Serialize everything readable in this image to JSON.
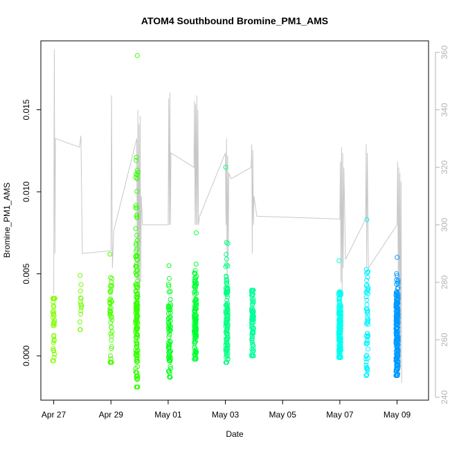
{
  "chart_data": {
    "type": "scatter",
    "title": "ATOM4 Southbound Bromine_PM1_AMS",
    "xlabel": "Date",
    "ylabel": "Bromine_PM1_AMS",
    "x_unit": "days since Apr 27",
    "xlim": [
      -0.45,
      13.1
    ],
    "ylim": [
      -0.0027,
      0.0192
    ],
    "y2lim": [
      239,
      364
    ],
    "x_ticks": [
      {
        "value": 0,
        "label": "Apr 27"
      },
      {
        "value": 2,
        "label": "Apr 29"
      },
      {
        "value": 4,
        "label": "May 01"
      },
      {
        "value": 6,
        "label": "May 03"
      },
      {
        "value": 8,
        "label": "May 05"
      },
      {
        "value": 10,
        "label": "May 07"
      },
      {
        "value": 12,
        "label": "May 09"
      }
    ],
    "y_ticks": [
      {
        "value": 0.0,
        "label": "0.000"
      },
      {
        "value": 0.005,
        "label": "0.005"
      },
      {
        "value": 0.01,
        "label": "0.010"
      },
      {
        "value": 0.015,
        "label": "0.015"
      }
    ],
    "y2_ticks": [
      {
        "value": 240,
        "label": "240"
      },
      {
        "value": 260,
        "label": "260"
      },
      {
        "value": 280,
        "label": "280"
      },
      {
        "value": 300,
        "label": "300"
      },
      {
        "value": 320,
        "label": "320"
      },
      {
        "value": 340,
        "label": "340"
      },
      {
        "value": 360,
        "label": "360"
      }
    ],
    "series": [
      {
        "name": "Bromine_PM1_AMS",
        "axis": "left",
        "color_by_time": "rainbow yellow-green to blue",
        "clusters": [
          {
            "x": 0.0,
            "min": -0.0003,
            "max": 0.0035,
            "n": 40,
            "center": 0.002,
            "color": "#80ff00"
          },
          {
            "x": 0.95,
            "min": 0.0016,
            "max": 0.0049,
            "n": 14,
            "center": 0.003,
            "color": "#73ff00"
          },
          {
            "x": 2.0,
            "min": -0.0004,
            "max": 0.0062,
            "n": 45,
            "center": 0.002,
            "color": "#4dff00"
          },
          {
            "x": 2.9,
            "min": -0.0019,
            "max": 0.0183,
            "n": 160,
            "center": 0.0025,
            "color": "#33ff00"
          },
          {
            "x": 4.05,
            "min": -0.0013,
            "max": 0.0055,
            "n": 70,
            "center": 0.0015,
            "color": "#00ff1a"
          },
          {
            "x": 4.95,
            "min": -0.0002,
            "max": 0.0075,
            "n": 130,
            "center": 0.0022,
            "color": "#00ff33"
          },
          {
            "x": 6.05,
            "min": -0.0004,
            "max": 0.0115,
            "n": 110,
            "center": 0.002,
            "color": "#00ff80"
          },
          {
            "x": 6.95,
            "min": 0.0,
            "max": 0.004,
            "n": 80,
            "center": 0.0022,
            "color": "#00ff99"
          },
          {
            "x": 10.0,
            "min": -0.0001,
            "max": 0.0058,
            "n": 160,
            "center": 0.0015,
            "color": "#00ffee"
          },
          {
            "x": 10.95,
            "min": -0.0012,
            "max": 0.0083,
            "n": 60,
            "center": 0.0018,
            "color": "#00f2ff"
          },
          {
            "x": 12.0,
            "min": -0.0012,
            "max": 0.006,
            "n": 200,
            "center": 0.0015,
            "color": "#0099ff"
          }
        ]
      },
      {
        "name": "secondary (right axis)",
        "axis": "right",
        "color": "#c8c8c8",
        "path": [
          [
            0.0,
            276
          ],
          [
            0.02,
            361
          ],
          [
            0.04,
            290
          ],
          [
            0.06,
            330
          ],
          [
            0.9,
            327
          ],
          [
            0.95,
            331
          ],
          [
            1.0,
            290
          ],
          [
            2.0,
            291
          ],
          [
            2.02,
            345
          ],
          [
            2.05,
            285
          ],
          [
            2.1,
            298
          ],
          [
            2.9,
            330
          ],
          [
            2.92,
            280
          ],
          [
            2.94,
            340
          ],
          [
            2.96,
            270
          ],
          [
            2.98,
            335
          ],
          [
            3.0,
            275
          ],
          [
            3.02,
            338
          ],
          [
            3.04,
            280
          ],
          [
            3.06,
            310
          ],
          [
            3.1,
            300
          ],
          [
            4.0,
            300
          ],
          [
            4.02,
            344
          ],
          [
            4.04,
            300
          ],
          [
            4.06,
            346
          ],
          [
            4.08,
            300
          ],
          [
            4.1,
            325
          ],
          [
            4.9,
            320
          ],
          [
            4.92,
            343
          ],
          [
            4.94,
            300
          ],
          [
            4.96,
            342
          ],
          [
            4.98,
            300
          ],
          [
            5.0,
            345
          ],
          [
            5.02,
            300
          ],
          [
            5.04,
            340
          ],
          [
            5.06,
            300
          ],
          [
            5.1,
            303
          ],
          [
            6.0,
            325
          ],
          [
            6.02,
            300
          ],
          [
            6.04,
            330
          ],
          [
            6.06,
            280
          ],
          [
            6.08,
            324
          ],
          [
            6.1,
            290
          ],
          [
            6.12,
            318
          ],
          [
            6.2,
            316
          ],
          [
            6.9,
            320
          ],
          [
            6.92,
            328
          ],
          [
            6.94,
            290
          ],
          [
            6.96,
            326
          ],
          [
            6.98,
            300
          ],
          [
            7.0,
            310
          ],
          [
            7.1,
            303
          ],
          [
            10.0,
            302
          ],
          [
            10.02,
            322
          ],
          [
            10.04,
            280
          ],
          [
            10.06,
            327
          ],
          [
            10.08,
            275
          ],
          [
            10.1,
            325
          ],
          [
            10.12,
            285
          ],
          [
            10.14,
            320
          ],
          [
            10.2,
            288
          ],
          [
            10.9,
            302
          ],
          [
            10.92,
            328
          ],
          [
            10.94,
            285
          ],
          [
            10.96,
            325
          ],
          [
            11.0,
            285
          ],
          [
            12.0,
            300
          ],
          [
            12.02,
            322
          ],
          [
            12.04,
            280
          ],
          [
            12.06,
            320
          ],
          [
            12.08,
            270
          ],
          [
            12.1,
            318
          ],
          [
            12.12,
            250
          ],
          [
            12.14,
            315
          ],
          [
            12.16,
            245
          ]
        ]
      }
    ],
    "grid": false,
    "legend": "none"
  }
}
